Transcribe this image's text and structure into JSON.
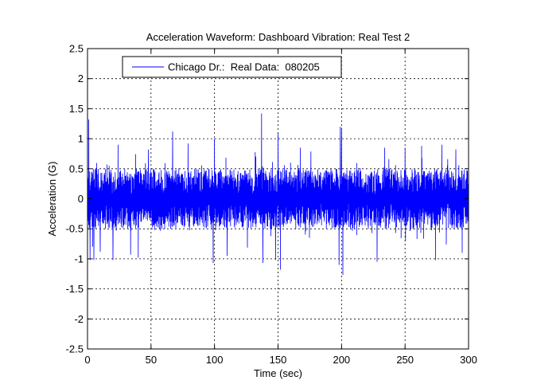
{
  "chart_data": {
    "type": "line",
    "title": "Acceleration Waveform:  Dashboard Vibration:  Real Test 2",
    "xlabel": "Time (sec)",
    "ylabel": "Acceleration (G)",
    "xlim": [
      0,
      300
    ],
    "ylim": [
      -2.5,
      2.5
    ],
    "xticks": [
      0,
      50,
      100,
      150,
      200,
      250,
      300
    ],
    "xtick_labels": [
      "0",
      "50",
      "100",
      "150",
      "200",
      "250",
      "300"
    ],
    "yticks": [
      2.5,
      2,
      1.5,
      1,
      0.5,
      0,
      -0.5,
      -1,
      -1.5,
      -2,
      -2.5
    ],
    "ytick_labels": [
      "2.5",
      "2",
      "1.5",
      "1",
      "0.5",
      "0",
      "-0.5",
      "-1",
      "-1.5",
      "-2",
      "-2.5"
    ],
    "grid": true,
    "grid_style": "dotted",
    "legend_position": "top-left",
    "series": [
      {
        "name": "Chicago Dr.:  Real Data:  080205",
        "color": "#0000ff",
        "typical_amplitude": 0.5,
        "x_range": [
          0,
          300
        ],
        "peaks": [
          {
            "x": 1,
            "y": 1.32
          },
          {
            "x": 5,
            "y": 1.3
          },
          {
            "x": 2,
            "y": -1.02
          },
          {
            "x": 5,
            "y": -1.02
          },
          {
            "x": 10,
            "y": -0.88
          },
          {
            "x": 24,
            "y": 0.9
          },
          {
            "x": 20,
            "y": -1.02
          },
          {
            "x": 34,
            "y": -0.93
          },
          {
            "x": 40,
            "y": -0.98
          },
          {
            "x": 48,
            "y": 0.82
          },
          {
            "x": 67,
            "y": 1.12
          },
          {
            "x": 99,
            "y": -1.07
          },
          {
            "x": 100,
            "y": 1.0
          },
          {
            "x": 110,
            "y": -0.95
          },
          {
            "x": 137,
            "y": 1.42
          },
          {
            "x": 138,
            "y": -1.07
          },
          {
            "x": 148,
            "y": -1.02
          },
          {
            "x": 150,
            "y": 1.1
          },
          {
            "x": 152,
            "y": -1.18
          },
          {
            "x": 198,
            "y": -1.1
          },
          {
            "x": 199,
            "y": 1.2
          },
          {
            "x": 200,
            "y": 1.18
          },
          {
            "x": 201,
            "y": -1.27
          },
          {
            "x": 228,
            "y": -1.05
          },
          {
            "x": 234,
            "y": 0.85
          },
          {
            "x": 250,
            "y": 0.85
          },
          {
            "x": 263,
            "y": 0.88
          },
          {
            "x": 274,
            "y": -1.02
          },
          {
            "x": 279,
            "y": 0.9
          },
          {
            "x": 290,
            "y": 0.82
          },
          {
            "x": 295,
            "y": -0.9
          }
        ]
      }
    ]
  }
}
